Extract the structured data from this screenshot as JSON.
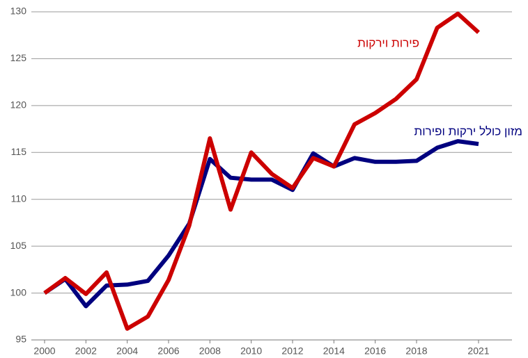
{
  "chart_data": {
    "type": "line",
    "x": [
      2000,
      2001,
      2002,
      2003,
      2004,
      2005,
      2006,
      2007,
      2008,
      2009,
      2010,
      2011,
      2012,
      2013,
      2014,
      2015,
      2016,
      2017,
      2018,
      2019,
      2020,
      2021
    ],
    "series": [
      {
        "name": "מזון כולל ירקות ופירות",
        "color": "#00007f",
        "values": [
          100,
          101.5,
          98.6,
          100.8,
          100.9,
          101.3,
          104.0,
          107.4,
          114.3,
          112.3,
          112.1,
          112.1,
          111.0,
          114.9,
          113.5,
          114.4,
          114.0,
          114.0,
          114.1,
          115.5,
          116.2,
          115.9
        ]
      },
      {
        "name": "פירות וירקות",
        "color": "#cc0000",
        "values": [
          100,
          101.6,
          99.9,
          102.2,
          96.2,
          97.5,
          101.4,
          107.2,
          116.5,
          108.9,
          115.0,
          112.7,
          111.2,
          114.4,
          113.5,
          118.0,
          119.2,
          120.7,
          122.8,
          128.3,
          129.8,
          127.8
        ]
      }
    ],
    "xlim": [
      2000,
      2021
    ],
    "xticks": [
      2000,
      2002,
      2004,
      2006,
      2008,
      2010,
      2012,
      2014,
      2016,
      2018,
      2021
    ],
    "ylim": [
      95,
      130
    ],
    "yticks": [
      95,
      100,
      105,
      110,
      115,
      120,
      125,
      130
    ],
    "grid": true
  }
}
